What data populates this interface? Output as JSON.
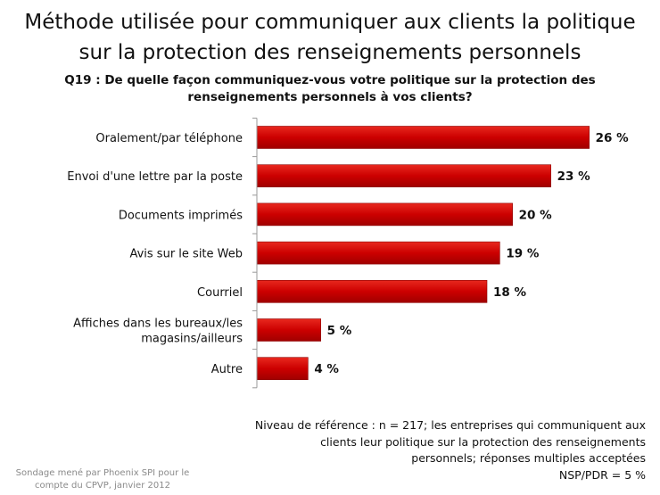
{
  "chart_data": {
    "type": "bar",
    "orientation": "horizontal",
    "title_lines": [
      "Méthode utilisée pour communiquer aux clients la politique",
      "sur la protection des renseignements personnels"
    ],
    "subtitle_lines": [
      "Q19 : De quelle façon communiquez-vous votre politique sur la protection des",
      "renseignements personnels à vos clients?"
    ],
    "categories": [
      [
        "Oralement/par téléphone"
      ],
      [
        "Envoi d'une lettre par la poste"
      ],
      [
        "Documents imprimés"
      ],
      [
        "Avis sur le site Web"
      ],
      [
        "Courriel"
      ],
      [
        "Affiches dans les bureaux/les",
        "magasins/ailleurs"
      ],
      [
        "Autre"
      ]
    ],
    "values": [
      26,
      23,
      20,
      19,
      18,
      5,
      4
    ],
    "value_labels": [
      "26 %",
      "23 %",
      "20 %",
      "19 %",
      "18 %",
      "5 %",
      "4 %"
    ],
    "xlim": [
      0,
      30
    ],
    "bar_color": "#cc0000",
    "grid": false,
    "xlabel": "",
    "ylabel": ""
  },
  "footnote_lines": [
    "Niveau de référence  : n = 217; les entreprises  qui communiquent aux",
    "clients leur politique sur la protection des renseignements",
    "personnels; réponses  multiples acceptées",
    "NSP/PDR = 5 %"
  ],
  "source_lines": [
    "Sondage mené par Phoenix SPI pour le",
    "compte du CPVP, janvier 2012"
  ]
}
